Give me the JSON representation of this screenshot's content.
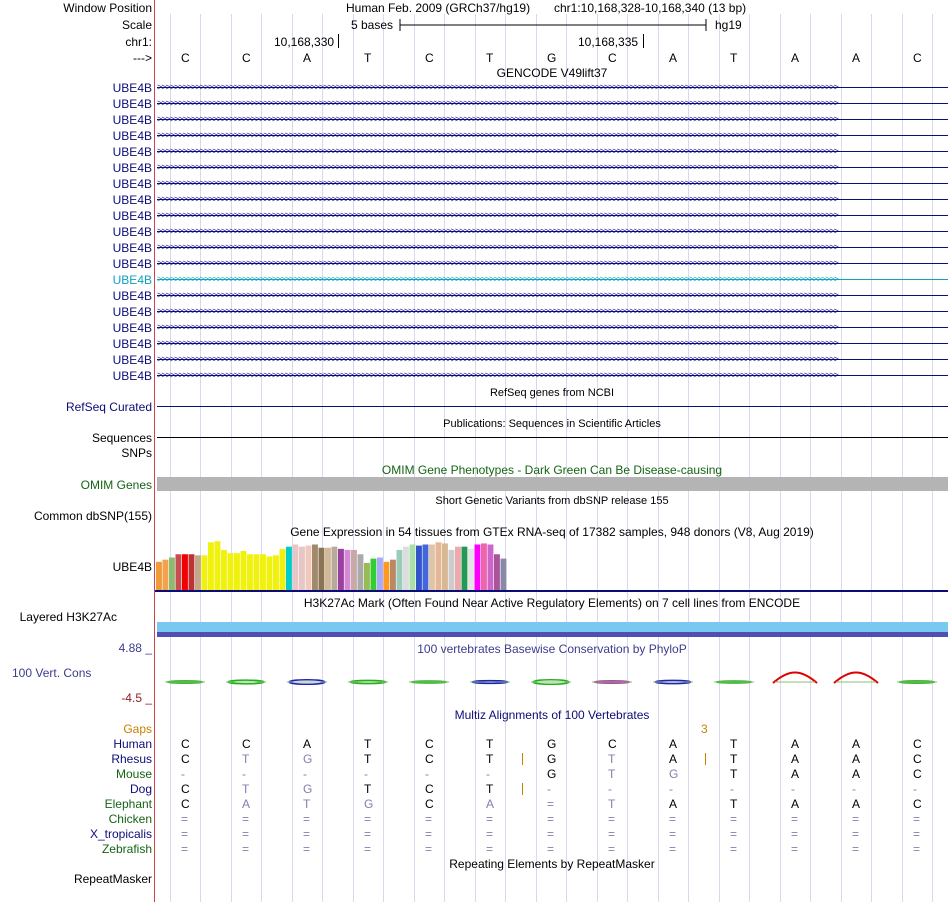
{
  "header": {
    "window_position_label": "Window Position",
    "scale_label": "Scale",
    "chrom_label": "chr1:",
    "strand_label": "--->",
    "assembly_text": "Human Feb. 2009 (GRCh37/hg19)",
    "position_text": "chr1:10,168,328-10,168,340 (13 bp)",
    "scale_text": "5 bases",
    "db_text": "hg19",
    "ruler_label_1": "10,168,330",
    "ruler_label_2": "10,168,335"
  },
  "bases": [
    "C",
    "C",
    "A",
    "T",
    "C",
    "T",
    "G",
    "C",
    "A",
    "T",
    "A",
    "A",
    "C"
  ],
  "gencode": {
    "title": "GENCODE V49lift37",
    "rows": [
      "UBE4B",
      "UBE4B",
      "UBE4B",
      "UBE4B",
      "UBE4B",
      "UBE4B",
      "UBE4B",
      "UBE4B",
      "UBE4B",
      "UBE4B",
      "UBE4B",
      "UBE4B",
      "UBE4B",
      "UBE4B",
      "UBE4B",
      "UBE4B",
      "UBE4B",
      "UBE4B",
      "UBE4B"
    ],
    "highlight_index": 12,
    "colors": {
      "normal": "#0c0c78",
      "highlight": "#10a0c0"
    }
  },
  "refseq": {
    "title": "RefSeq genes from NCBI",
    "label": "RefSeq Curated"
  },
  "publications": {
    "title": "Publications: Sequences in Scientific Articles",
    "label": "Sequences"
  },
  "snps": {
    "label": "SNPs"
  },
  "omim": {
    "title": "OMIM Gene Phenotypes - Dark Green Can Be Disease-causing",
    "label": "OMIM Genes",
    "color": "#146414"
  },
  "dbsnp": {
    "title": "Short Genetic Variants from dbSNP release 155",
    "label": "Common dbSNP(155)"
  },
  "gtex": {
    "title": "Gene Expression in 54 tissues from GTEx RNA-seq of 17382 samples, 948 donors (V8, Aug 2019)",
    "label": "UBE4B",
    "bar_values": [
      26,
      28,
      30,
      33,
      33,
      33,
      32,
      32,
      44,
      45,
      37,
      34,
      34,
      36,
      33,
      33,
      33,
      31,
      32,
      38,
      40,
      42,
      40,
      41,
      42,
      39,
      39,
      40,
      38,
      37,
      37,
      33,
      25,
      29,
      30,
      26,
      28,
      37,
      40,
      42,
      41,
      42,
      42,
      44,
      43,
      37,
      40,
      40,
      38,
      42,
      43,
      42,
      33,
      29
    ],
    "bar_colors": [
      "#ee9b3a",
      "#f2a14c",
      "#8bbb6e",
      "#c94c50",
      "#f00000",
      "#bb3333",
      "#c2a78a",
      "#f1f10e",
      "#f1f10e",
      "#f1f10e",
      "#f1f10e",
      "#f1f10e",
      "#f1f10e",
      "#f1f10e",
      "#f1f10e",
      "#f1f10e",
      "#f1f10e",
      "#f1f10e",
      "#f1f10e",
      "#f1f10e",
      "#00cccc",
      "#e7c6c6",
      "#e7c6c6",
      "#f1c8bb",
      "#a08a6a",
      "#8b7355",
      "#d3b897",
      "#b7a99b",
      "#9b3fa1",
      "#d38ad3",
      "#c9a8a8",
      "#aaaaaa",
      "#99bb55",
      "#33cc33",
      "#a8a8ff",
      "#ff9922",
      "#bb8866",
      "#99ccbb",
      "#dddddd",
      "#a9e0a9",
      "#3355cc",
      "#4466dd",
      "#e0c4a8",
      "#e4b896",
      "#d8b894",
      "#cccccc",
      "#eeaaaa",
      "#229955",
      "#e4e4e4",
      "#ff00ff",
      "#ee66aa",
      "#cc66cc",
      "#aa5599",
      "#8888aa"
    ]
  },
  "h3k27ac": {
    "title": "H3K27Ac Mark (Often Found Near Active Regulatory Elements) on 7 cell lines from ENCODE",
    "label": "Layered H3K27Ac"
  },
  "phylop": {
    "title": "100 vertebrates Basewise Conservation by PhyloP",
    "label": "100 Vert. Cons",
    "max_label": "4.88 _",
    "min_label": "-4.5 _",
    "scores": [
      0.3,
      0.6,
      0.8,
      0.5,
      0.2,
      0.4,
      0.8,
      -0.3,
      0.5,
      0.2,
      1.9,
      1.9,
      0.3
    ]
  },
  "multiz": {
    "title": "Multiz Alignments of 100 Vertebrates",
    "gaps_label": "Gaps",
    "gaps_count": "3",
    "species": [
      {
        "name": "Human",
        "color": "#0c0c78",
        "seq": [
          "C",
          "C",
          "A",
          "T",
          "C",
          "T",
          "G",
          "C",
          "A",
          "T",
          "A",
          "A",
          "C"
        ],
        "dim": [
          0,
          0,
          0,
          0,
          0,
          0,
          0,
          0,
          0,
          0,
          0,
          0,
          0
        ],
        "ins": []
      },
      {
        "name": "Rhesus",
        "color": "#0c0c78",
        "seq": [
          "C",
          "T",
          "G",
          "T",
          "C",
          "T",
          "G",
          "T",
          "A",
          "T",
          "A",
          "A",
          "C"
        ],
        "dim": [
          0,
          1,
          1,
          0,
          0,
          0,
          0,
          1,
          0,
          0,
          0,
          0,
          0
        ],
        "ins": [
          5,
          8
        ]
      },
      {
        "name": "Mouse",
        "color": "#146414",
        "seq": [
          "-",
          "-",
          "-",
          "-",
          "-",
          "-",
          "G",
          "T",
          "G",
          "T",
          "A",
          "A",
          "C"
        ],
        "dim": [
          1,
          1,
          1,
          1,
          1,
          1,
          0,
          1,
          1,
          0,
          0,
          0,
          0
        ],
        "ins": []
      },
      {
        "name": "Dog",
        "color": "#0c0c78",
        "seq": [
          "C",
          "T",
          "G",
          "T",
          "C",
          "T",
          "-",
          "-",
          "-",
          "-",
          "-",
          "-",
          "-"
        ],
        "dim": [
          0,
          1,
          1,
          0,
          0,
          0,
          1,
          1,
          1,
          1,
          1,
          1,
          1
        ],
        "ins": [
          5
        ]
      },
      {
        "name": "Elephant",
        "color": "#146414",
        "seq": [
          "C",
          "A",
          "T",
          "G",
          "C",
          "A",
          "=",
          "T",
          "A",
          "T",
          "A",
          "A",
          "C"
        ],
        "dim": [
          0,
          1,
          1,
          1,
          0,
          1,
          1,
          1,
          0,
          0,
          0,
          0,
          0
        ],
        "ins": []
      },
      {
        "name": "Chicken",
        "color": "#146414",
        "seq": [
          "=",
          "=",
          "=",
          "=",
          "=",
          "=",
          "=",
          "=",
          "=",
          "=",
          "=",
          "=",
          "="
        ],
        "dim": [
          1,
          1,
          1,
          1,
          1,
          1,
          1,
          1,
          1,
          1,
          1,
          1,
          1
        ],
        "ins": []
      },
      {
        "name": "X_tropicalis",
        "color": "#0c0c78",
        "seq": [
          "=",
          "=",
          "=",
          "=",
          "=",
          "=",
          "=",
          "=",
          "=",
          "=",
          "=",
          "=",
          "="
        ],
        "dim": [
          1,
          1,
          1,
          1,
          1,
          1,
          1,
          1,
          1,
          1,
          1,
          1,
          1
        ],
        "ins": []
      },
      {
        "name": "Zebrafish",
        "color": "#146414",
        "seq": [
          "=",
          "=",
          "=",
          "=",
          "=",
          "=",
          "=",
          "=",
          "=",
          "=",
          "=",
          "=",
          "="
        ],
        "dim": [
          1,
          1,
          1,
          1,
          1,
          1,
          1,
          1,
          1,
          1,
          1,
          1,
          1
        ],
        "ins": []
      }
    ]
  },
  "repeatmasker": {
    "title": "Repeating Elements by RepeatMasker",
    "label": "RepeatMasker"
  },
  "colors": {
    "navy": "#0c0c78",
    "green": "#146414",
    "gaps_orange": "#c88200",
    "phylop_blue": "#3c3c8c",
    "phylop_neg": "#8c1e1e",
    "omim_bar": "#b4b4b4",
    "h3k27_light": "#78c8f0",
    "h3k27_dark": "#5050b4"
  }
}
